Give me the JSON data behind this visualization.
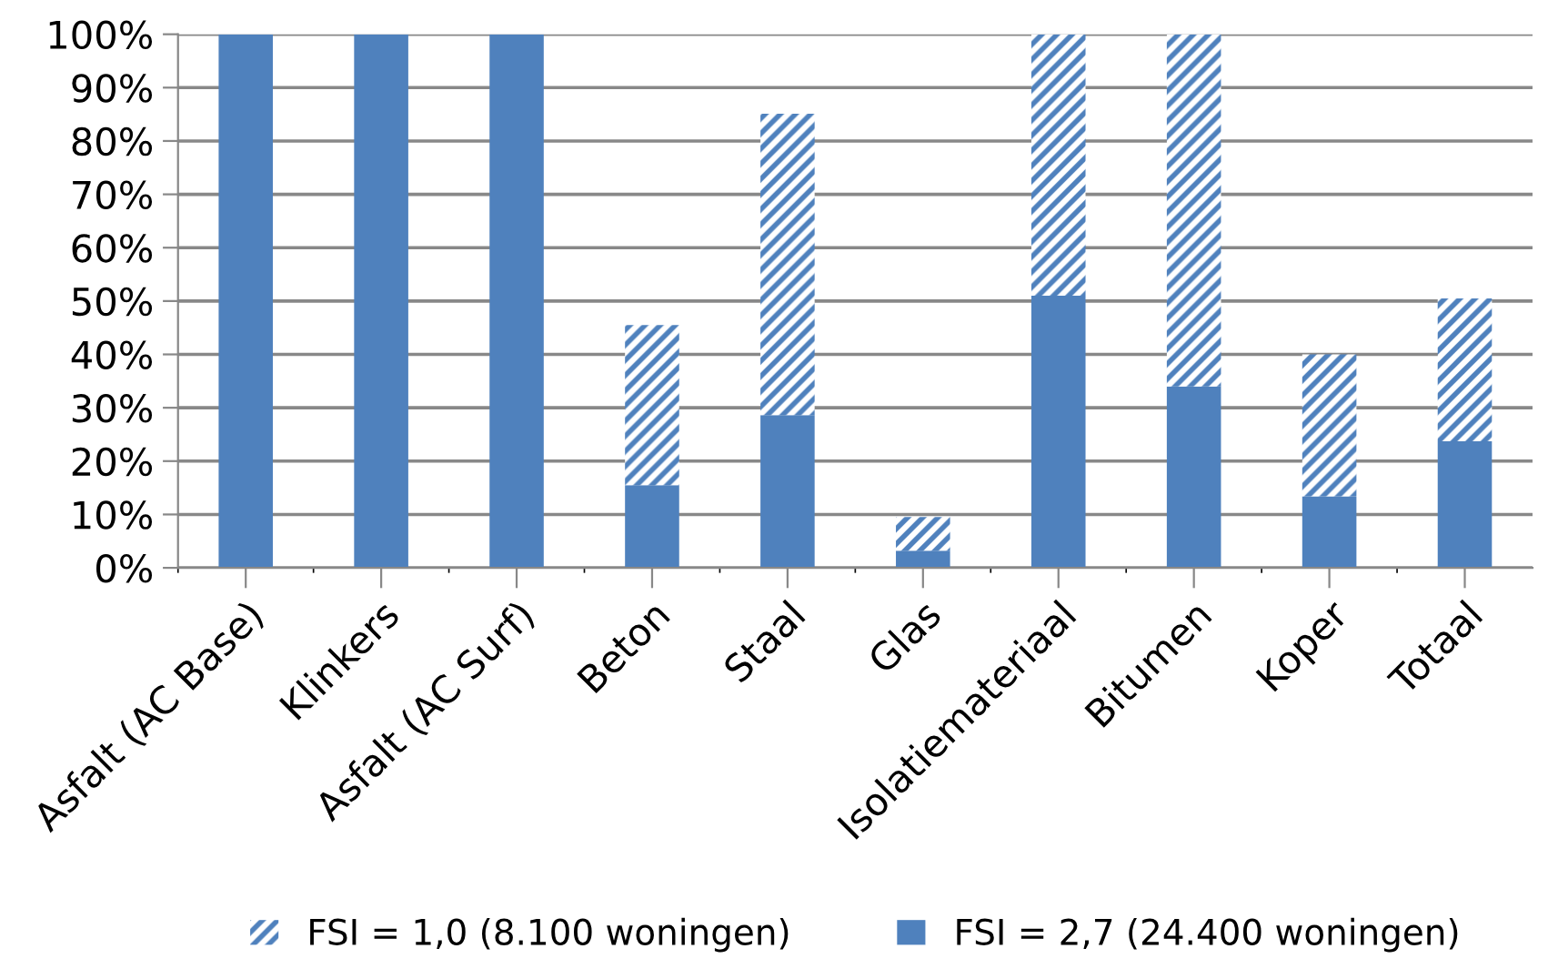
{
  "chart_data": {
    "type": "bar",
    "stacked": true,
    "categories": [
      "Asfalt (AC Base)",
      "Klinkers",
      "Asfalt (AC Surf)",
      "Beton",
      "Staal",
      "Glas",
      "Isolatiemateriaal",
      "Bitumen",
      "Koper",
      "Totaal"
    ],
    "series": [
      {
        "name": "FSI = 2,7 (24.400 woningen)",
        "color": "#4f81bd",
        "values": [
          100,
          100,
          100,
          15.5,
          28.6,
          3.2,
          51,
          34,
          13.4,
          23.7
        ]
      },
      {
        "name": "FSI = 1,0 (8.100 woningen)",
        "color": "#4f81bd",
        "values": [
          0,
          0,
          0,
          30,
          56.5,
          6.3,
          49,
          66,
          26.6,
          26.8
        ]
      }
    ],
    "ylim": [
      0,
      100
    ],
    "yticks": [
      {
        "value": 0,
        "label": "0%"
      },
      {
        "value": 10,
        "label": "10%"
      },
      {
        "value": 20,
        "label": "20%"
      },
      {
        "value": 30,
        "label": "30%"
      },
      {
        "value": 40,
        "label": "40%"
      },
      {
        "value": 50,
        "label": "50%"
      },
      {
        "value": 60,
        "label": "60%"
      },
      {
        "value": 70,
        "label": "70%"
      },
      {
        "value": 80,
        "label": "80%"
      },
      {
        "value": 90,
        "label": "90%"
      },
      {
        "value": 100,
        "label": "100%"
      }
    ],
    "grid": "y",
    "legend": "bottom"
  }
}
